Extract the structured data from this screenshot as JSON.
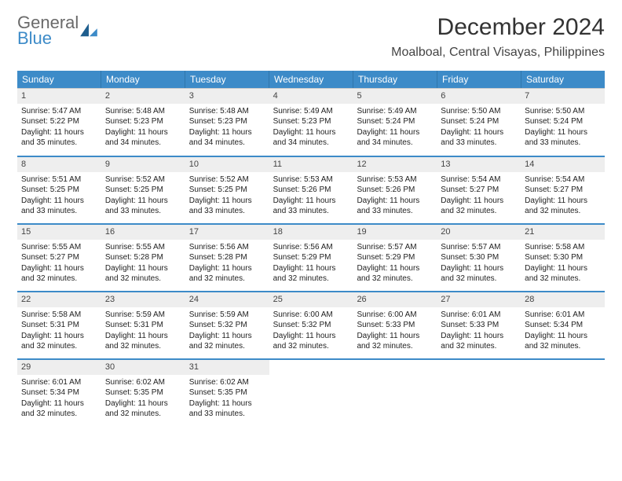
{
  "brand": {
    "line1": "General",
    "line2": "Blue",
    "color_gray": "#6a6a6a",
    "color_blue": "#3d8bc8"
  },
  "title": "December 2024",
  "location": "Moalboal, Central Visayas, Philippines",
  "weekdays": [
    "Sunday",
    "Monday",
    "Tuesday",
    "Wednesday",
    "Thursday",
    "Friday",
    "Saturday"
  ],
  "header_bg": "#3d8bc8",
  "daynum_bg": "#eeeeee",
  "week_divider": "#3d8bc8",
  "days": [
    {
      "n": "1",
      "sr": "Sunrise: 5:47 AM",
      "ss": "Sunset: 5:22 PM",
      "d1": "Daylight: 11 hours",
      "d2": "and 35 minutes."
    },
    {
      "n": "2",
      "sr": "Sunrise: 5:48 AM",
      "ss": "Sunset: 5:23 PM",
      "d1": "Daylight: 11 hours",
      "d2": "and 34 minutes."
    },
    {
      "n": "3",
      "sr": "Sunrise: 5:48 AM",
      "ss": "Sunset: 5:23 PM",
      "d1": "Daylight: 11 hours",
      "d2": "and 34 minutes."
    },
    {
      "n": "4",
      "sr": "Sunrise: 5:49 AM",
      "ss": "Sunset: 5:23 PM",
      "d1": "Daylight: 11 hours",
      "d2": "and 34 minutes."
    },
    {
      "n": "5",
      "sr": "Sunrise: 5:49 AM",
      "ss": "Sunset: 5:24 PM",
      "d1": "Daylight: 11 hours",
      "d2": "and 34 minutes."
    },
    {
      "n": "6",
      "sr": "Sunrise: 5:50 AM",
      "ss": "Sunset: 5:24 PM",
      "d1": "Daylight: 11 hours",
      "d2": "and 33 minutes."
    },
    {
      "n": "7",
      "sr": "Sunrise: 5:50 AM",
      "ss": "Sunset: 5:24 PM",
      "d1": "Daylight: 11 hours",
      "d2": "and 33 minutes."
    },
    {
      "n": "8",
      "sr": "Sunrise: 5:51 AM",
      "ss": "Sunset: 5:25 PM",
      "d1": "Daylight: 11 hours",
      "d2": "and 33 minutes."
    },
    {
      "n": "9",
      "sr": "Sunrise: 5:52 AM",
      "ss": "Sunset: 5:25 PM",
      "d1": "Daylight: 11 hours",
      "d2": "and 33 minutes."
    },
    {
      "n": "10",
      "sr": "Sunrise: 5:52 AM",
      "ss": "Sunset: 5:25 PM",
      "d1": "Daylight: 11 hours",
      "d2": "and 33 minutes."
    },
    {
      "n": "11",
      "sr": "Sunrise: 5:53 AM",
      "ss": "Sunset: 5:26 PM",
      "d1": "Daylight: 11 hours",
      "d2": "and 33 minutes."
    },
    {
      "n": "12",
      "sr": "Sunrise: 5:53 AM",
      "ss": "Sunset: 5:26 PM",
      "d1": "Daylight: 11 hours",
      "d2": "and 33 minutes."
    },
    {
      "n": "13",
      "sr": "Sunrise: 5:54 AM",
      "ss": "Sunset: 5:27 PM",
      "d1": "Daylight: 11 hours",
      "d2": "and 32 minutes."
    },
    {
      "n": "14",
      "sr": "Sunrise: 5:54 AM",
      "ss": "Sunset: 5:27 PM",
      "d1": "Daylight: 11 hours",
      "d2": "and 32 minutes."
    },
    {
      "n": "15",
      "sr": "Sunrise: 5:55 AM",
      "ss": "Sunset: 5:27 PM",
      "d1": "Daylight: 11 hours",
      "d2": "and 32 minutes."
    },
    {
      "n": "16",
      "sr": "Sunrise: 5:55 AM",
      "ss": "Sunset: 5:28 PM",
      "d1": "Daylight: 11 hours",
      "d2": "and 32 minutes."
    },
    {
      "n": "17",
      "sr": "Sunrise: 5:56 AM",
      "ss": "Sunset: 5:28 PM",
      "d1": "Daylight: 11 hours",
      "d2": "and 32 minutes."
    },
    {
      "n": "18",
      "sr": "Sunrise: 5:56 AM",
      "ss": "Sunset: 5:29 PM",
      "d1": "Daylight: 11 hours",
      "d2": "and 32 minutes."
    },
    {
      "n": "19",
      "sr": "Sunrise: 5:57 AM",
      "ss": "Sunset: 5:29 PM",
      "d1": "Daylight: 11 hours",
      "d2": "and 32 minutes."
    },
    {
      "n": "20",
      "sr": "Sunrise: 5:57 AM",
      "ss": "Sunset: 5:30 PM",
      "d1": "Daylight: 11 hours",
      "d2": "and 32 minutes."
    },
    {
      "n": "21",
      "sr": "Sunrise: 5:58 AM",
      "ss": "Sunset: 5:30 PM",
      "d1": "Daylight: 11 hours",
      "d2": "and 32 minutes."
    },
    {
      "n": "22",
      "sr": "Sunrise: 5:58 AM",
      "ss": "Sunset: 5:31 PM",
      "d1": "Daylight: 11 hours",
      "d2": "and 32 minutes."
    },
    {
      "n": "23",
      "sr": "Sunrise: 5:59 AM",
      "ss": "Sunset: 5:31 PM",
      "d1": "Daylight: 11 hours",
      "d2": "and 32 minutes."
    },
    {
      "n": "24",
      "sr": "Sunrise: 5:59 AM",
      "ss": "Sunset: 5:32 PM",
      "d1": "Daylight: 11 hours",
      "d2": "and 32 minutes."
    },
    {
      "n": "25",
      "sr": "Sunrise: 6:00 AM",
      "ss": "Sunset: 5:32 PM",
      "d1": "Daylight: 11 hours",
      "d2": "and 32 minutes."
    },
    {
      "n": "26",
      "sr": "Sunrise: 6:00 AM",
      "ss": "Sunset: 5:33 PM",
      "d1": "Daylight: 11 hours",
      "d2": "and 32 minutes."
    },
    {
      "n": "27",
      "sr": "Sunrise: 6:01 AM",
      "ss": "Sunset: 5:33 PM",
      "d1": "Daylight: 11 hours",
      "d2": "and 32 minutes."
    },
    {
      "n": "28",
      "sr": "Sunrise: 6:01 AM",
      "ss": "Sunset: 5:34 PM",
      "d1": "Daylight: 11 hours",
      "d2": "and 32 minutes."
    },
    {
      "n": "29",
      "sr": "Sunrise: 6:01 AM",
      "ss": "Sunset: 5:34 PM",
      "d1": "Daylight: 11 hours",
      "d2": "and 32 minutes."
    },
    {
      "n": "30",
      "sr": "Sunrise: 6:02 AM",
      "ss": "Sunset: 5:35 PM",
      "d1": "Daylight: 11 hours",
      "d2": "and 32 minutes."
    },
    {
      "n": "31",
      "sr": "Sunrise: 6:02 AM",
      "ss": "Sunset: 5:35 PM",
      "d1": "Daylight: 11 hours",
      "d2": "and 33 minutes."
    }
  ]
}
